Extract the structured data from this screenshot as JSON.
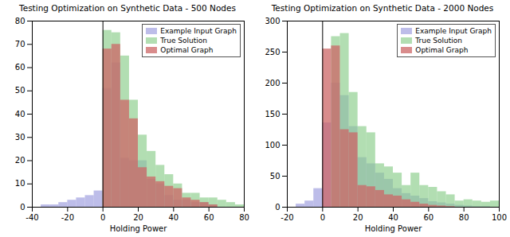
{
  "chart_data": [
    {
      "type": "histogram",
      "title": "Testing Optimization on Synthetic Data - 500 Nodes",
      "xlabel": "Holding Power",
      "bins": [
        -40,
        -35,
        -30,
        -25,
        -20,
        -15,
        -10,
        -5,
        0,
        5,
        10,
        15,
        20,
        25,
        30,
        35,
        40,
        45,
        50,
        55,
        60,
        65,
        70,
        75,
        80
      ],
      "series": [
        {
          "name": "Example Input Graph",
          "color": "#9999dd",
          "values": [
            0,
            1,
            1,
            2,
            3,
            4,
            5,
            7,
            51,
            62,
            21,
            20,
            20,
            12,
            10,
            5,
            3,
            3,
            2,
            2,
            1,
            0,
            0,
            0
          ]
        },
        {
          "name": "True Solution",
          "color": "#88cc88",
          "values": [
            0,
            0,
            0,
            0,
            0,
            0,
            0,
            0,
            76,
            75,
            65,
            46,
            31,
            24,
            18,
            14,
            10,
            6,
            6,
            4,
            4,
            3,
            2,
            1
          ]
        },
        {
          "name": "Optimal Graph",
          "color": "#cc6666",
          "values": [
            0,
            0,
            0,
            0,
            0,
            0,
            0,
            0,
            68,
            70,
            46,
            38,
            17,
            13,
            11,
            9,
            8,
            4,
            3,
            2,
            1,
            0,
            0,
            0
          ]
        }
      ],
      "vline": 0,
      "xlim": [
        -40,
        80
      ],
      "xticks": [
        -40,
        -20,
        0,
        20,
        40,
        60,
        80
      ],
      "ylim": [
        0,
        80
      ],
      "yticks": [
        0,
        10,
        20,
        30,
        40,
        50,
        60,
        70,
        80
      ],
      "legend": "upper right",
      "grid": false
    },
    {
      "type": "histogram",
      "title": "Testing Optimization on Synthetic Data - 2000 Nodes",
      "xlabel": "Holding Power",
      "bins": [
        -20,
        -15,
        -10,
        -5,
        0,
        5,
        10,
        15,
        20,
        25,
        30,
        35,
        40,
        45,
        50,
        55,
        60,
        65,
        70,
        75,
        80,
        85,
        90,
        95,
        100
      ],
      "series": [
        {
          "name": "Example Input Graph",
          "color": "#9999dd",
          "values": [
            0,
            5,
            10,
            30,
            136,
            200,
            180,
            130,
            80,
            70,
            55,
            45,
            30,
            22,
            18,
            14,
            9,
            7,
            5,
            3,
            2,
            1,
            1,
            0
          ]
        },
        {
          "name": "True Solution",
          "color": "#88cc88",
          "values": [
            0,
            0,
            0,
            0,
            0,
            275,
            280,
            185,
            130,
            120,
            70,
            65,
            55,
            35,
            55,
            35,
            32,
            25,
            20,
            10,
            12,
            10,
            8,
            10
          ]
        },
        {
          "name": "Optimal Graph",
          "color": "#cc6666",
          "values": [
            0,
            0,
            0,
            0,
            255,
            260,
            125,
            120,
            35,
            33,
            27,
            20,
            18,
            12,
            8,
            5,
            3,
            2,
            1,
            0,
            0,
            0,
            0,
            0
          ]
        }
      ],
      "vline": 0,
      "xlim": [
        -20,
        100
      ],
      "xticks": [
        -20,
        0,
        20,
        40,
        60,
        80,
        100
      ],
      "ylim": [
        0,
        300
      ],
      "yticks": [
        0,
        50,
        100,
        150,
        200,
        250,
        300
      ],
      "legend": "upper right",
      "grid": false
    }
  ]
}
